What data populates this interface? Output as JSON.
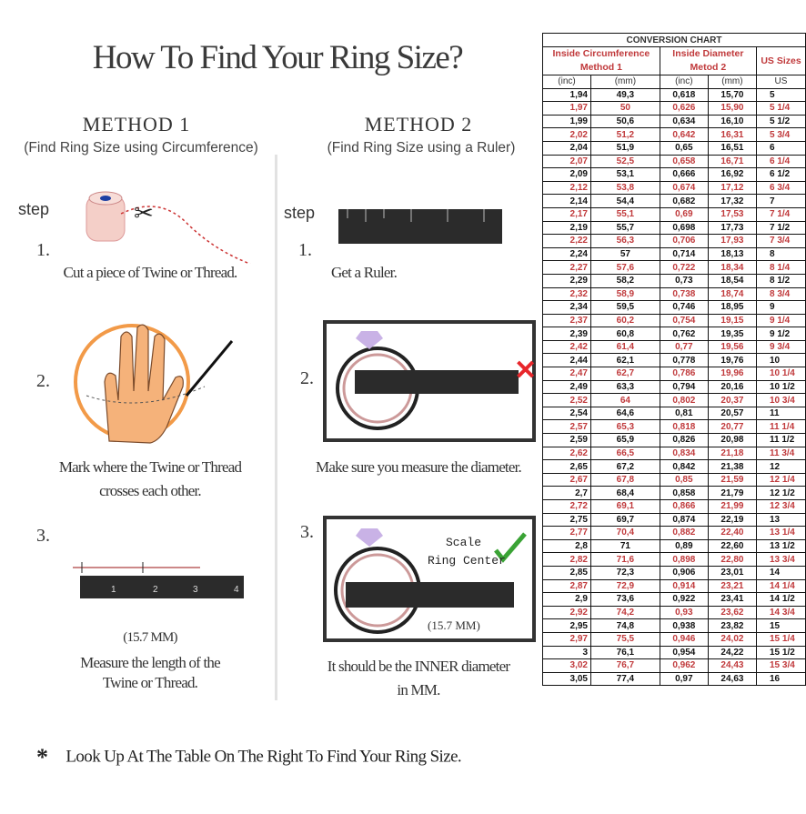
{
  "title": "How To Find Your Ring Size?",
  "method1": {
    "heading": "METHOD 1",
    "subtitle": "(Find Ring Size using Circumference)",
    "step_label": "step",
    "steps": [
      {
        "num": "1.",
        "caption": "Cut a piece of  Twine or Thread."
      },
      {
        "num": "2.",
        "caption_line1": "Mark where the Twine or Thread",
        "caption_line2": "crosses each other."
      },
      {
        "num": "3.",
        "measure": "(15.7 MM)",
        "caption_line1": "Measure the length of the",
        "caption_line2": "Twine or Thread."
      }
    ]
  },
  "method2": {
    "heading": "METHOD 2",
    "subtitle": "(Find Ring Size using a Ruler)",
    "step_label": "step",
    "steps": [
      {
        "num": "1.",
        "caption": "Get a Ruler."
      },
      {
        "num": "2.",
        "caption": "Make sure you measure the diameter."
      },
      {
        "num": "3.",
        "scale_label": "Scale",
        "center_label": "Ring Center",
        "measure": "(15.7 MM)",
        "caption_line1": "It should be the INNER diameter",
        "caption_line2": "in MM."
      }
    ]
  },
  "ruler_ticks": [
    "1",
    "2",
    "3",
    "4"
  ],
  "footnote": "Look Up At The Table On The Right To Find Your Ring Size.",
  "footnote_marker": "*",
  "colors": {
    "accent_red": "#c0393b",
    "check_green": "#3aa335",
    "cross_red": "#e8262b",
    "hand_orange": "#f29a48"
  },
  "conversion_chart": {
    "title": "CONVERSION CHART",
    "group_headers": [
      "Inside Circumference Method 1",
      "Inside Diameter Metod 2",
      "US Sizes"
    ],
    "group_header_lines": [
      [
        "Inside Circumference",
        "Method 1"
      ],
      [
        "Inside Diameter",
        "Metod 2"
      ],
      [
        "US Sizes"
      ]
    ],
    "units": [
      "(inc)",
      "(mm)",
      "(inc)",
      "(mm)",
      "US"
    ],
    "rows": [
      [
        "1,94",
        "49,3",
        "0,618",
        "15,70",
        "5"
      ],
      [
        "1,97",
        "50",
        "0,626",
        "15,90",
        "5 1/4"
      ],
      [
        "1,99",
        "50,6",
        "0,634",
        "16,10",
        "5 1/2"
      ],
      [
        "2,02",
        "51,2",
        "0,642",
        "16,31",
        "5 3/4"
      ],
      [
        "2,04",
        "51,9",
        "0,65",
        "16,51",
        "6"
      ],
      [
        "2,07",
        "52,5",
        "0,658",
        "16,71",
        "6 1/4"
      ],
      [
        "2,09",
        "53,1",
        "0,666",
        "16,92",
        "6 1/2"
      ],
      [
        "2,12",
        "53,8",
        "0,674",
        "17,12",
        "6 3/4"
      ],
      [
        "2,14",
        "54,4",
        "0,682",
        "17,32",
        "7"
      ],
      [
        "2,17",
        "55,1",
        "0,69",
        "17,53",
        "7 1/4"
      ],
      [
        "2,19",
        "55,7",
        "0,698",
        "17,73",
        "7 1/2"
      ],
      [
        "2,22",
        "56,3",
        "0,706",
        "17,93",
        "7 3/4"
      ],
      [
        "2,24",
        "57",
        "0,714",
        "18,13",
        "8"
      ],
      [
        "2,27",
        "57,6",
        "0,722",
        "18,34",
        "8 1/4"
      ],
      [
        "2,29",
        "58,2",
        "0,73",
        "18,54",
        "8 1/2"
      ],
      [
        "2,32",
        "58,9",
        "0,738",
        "18,74",
        "8 3/4"
      ],
      [
        "2,34",
        "59,5",
        "0,746",
        "18,95",
        "9"
      ],
      [
        "2,37",
        "60,2",
        "0,754",
        "19,15",
        "9 1/4"
      ],
      [
        "2,39",
        "60,8",
        "0,762",
        "19,35",
        "9 1/2"
      ],
      [
        "2,42",
        "61,4",
        "0,77",
        "19,56",
        "9 3/4"
      ],
      [
        "2,44",
        "62,1",
        "0,778",
        "19,76",
        "10"
      ],
      [
        "2,47",
        "62,7",
        "0,786",
        "19,96",
        "10 1/4"
      ],
      [
        "2,49",
        "63,3",
        "0,794",
        "20,16",
        "10 1/2"
      ],
      [
        "2,52",
        "64",
        "0,802",
        "20,37",
        "10 3/4"
      ],
      [
        "2,54",
        "64,6",
        "0,81",
        "20,57",
        "11"
      ],
      [
        "2,57",
        "65,3",
        "0,818",
        "20,77",
        "11 1/4"
      ],
      [
        "2,59",
        "65,9",
        "0,826",
        "20,98",
        "11 1/2"
      ],
      [
        "2,62",
        "66,5",
        "0,834",
        "21,18",
        "11 3/4"
      ],
      [
        "2,65",
        "67,2",
        "0,842",
        "21,38",
        "12"
      ],
      [
        "2,67",
        "67,8",
        "0,85",
        "21,59",
        "12 1/4"
      ],
      [
        "2,7",
        "68,4",
        "0,858",
        "21,79",
        "12 1/2"
      ],
      [
        "2,72",
        "69,1",
        "0,866",
        "21,99",
        "12 3/4"
      ],
      [
        "2,75",
        "69,7",
        "0,874",
        "22,19",
        "13"
      ],
      [
        "2,77",
        "70,4",
        "0,882",
        "22,40",
        "13 1/4"
      ],
      [
        "2,8",
        "71",
        "0,89",
        "22,60",
        "13 1/2"
      ],
      [
        "2,82",
        "71,6",
        "0,898",
        "22,80",
        "13 3/4"
      ],
      [
        "2,85",
        "72,3",
        "0,906",
        "23,01",
        "14"
      ],
      [
        "2,87",
        "72,9",
        "0,914",
        "23,21",
        "14 1/4"
      ],
      [
        "2,9",
        "73,6",
        "0,922",
        "23,41",
        "14 1/2"
      ],
      [
        "2,92",
        "74,2",
        "0,93",
        "23,62",
        "14 3/4"
      ],
      [
        "2,95",
        "74,8",
        "0,938",
        "23,82",
        "15"
      ],
      [
        "2,97",
        "75,5",
        "0,946",
        "24,02",
        "15 1/4"
      ],
      [
        "3",
        "76,1",
        "0,954",
        "24,22",
        "15 1/2"
      ],
      [
        "3,02",
        "76,7",
        "0,962",
        "24,43",
        "15 3/4"
      ],
      [
        "3,05",
        "77,4",
        "0,97",
        "24,63",
        "16"
      ]
    ]
  }
}
